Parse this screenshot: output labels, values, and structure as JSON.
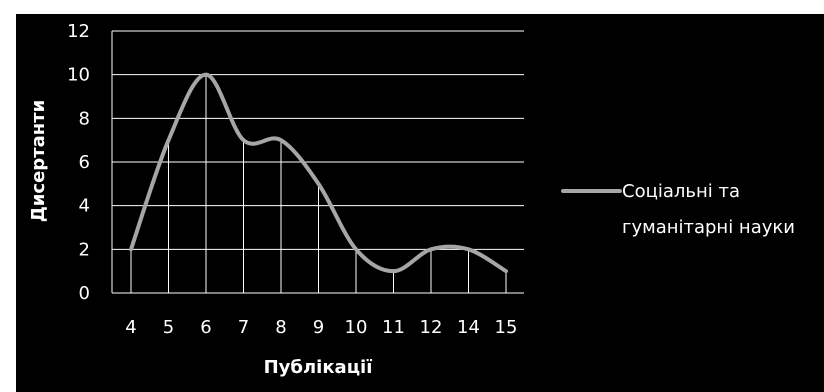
{
  "chart_data": {
    "type": "line",
    "categories": [
      "4",
      "5",
      "6",
      "7",
      "8",
      "9",
      "10",
      "11",
      "12",
      "14",
      "15"
    ],
    "series": [
      {
        "name": "Соціальні та гуманітарні науки",
        "values": [
          2,
          7,
          10,
          7,
          7,
          5,
          2,
          1,
          2,
          2,
          1
        ]
      }
    ],
    "xlabel": "Публікації",
    "ylabel": "Дисертанти",
    "ylim": [
      0,
      12
    ],
    "yticks": [
      "0",
      "2",
      "4",
      "6",
      "8",
      "10",
      "12"
    ],
    "grid": true,
    "smooth": true,
    "drop_lines": true,
    "legend": {
      "position": "right",
      "line1": "Соціальні та",
      "line2": "гуманітарні науки"
    },
    "colors": {
      "background": "#000000",
      "series_line": "#a6a6a6",
      "grid": "#ffffff",
      "text": "#ffffff"
    }
  }
}
